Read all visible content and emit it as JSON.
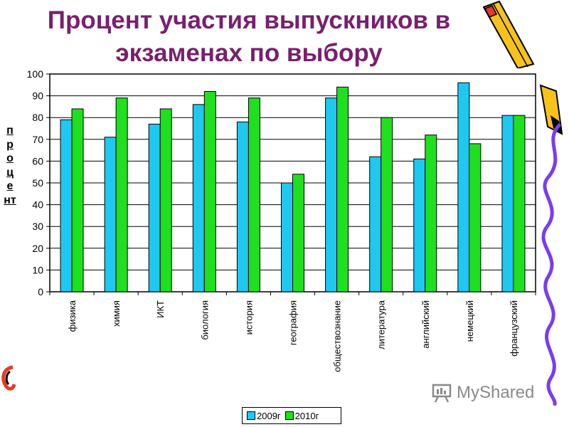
{
  "title": {
    "line1": "Процент участия выпускников в",
    "line2": "экзаменах по выбору"
  },
  "watermark": {
    "text": "MyShared",
    "icon": "presentation-board-icon"
  },
  "colors": {
    "series_2009": "#1ec8f0",
    "series_2010": "#1fe01f",
    "title": "#7a1f6e"
  },
  "chart_data": {
    "type": "bar",
    "ylabel": "процент",
    "ylim": [
      0,
      100
    ],
    "yticks": [
      0,
      10,
      20,
      30,
      40,
      50,
      60,
      70,
      80,
      90,
      100
    ],
    "grid": true,
    "legend_position": "bottom",
    "categories": [
      "физика",
      "химия",
      "ИКТ",
      "биология",
      "история",
      "география",
      "обществознание",
      "литература",
      "английский",
      "немецкий",
      "французский"
    ],
    "series": [
      {
        "name": "2009г",
        "color": "#1ec8f0",
        "values": [
          79,
          71,
          77,
          86,
          78,
          50,
          89,
          62,
          61,
          96,
          81
        ]
      },
      {
        "name": "2010г",
        "color": "#1fe01f",
        "values": [
          84,
          89,
          84,
          92,
          89,
          54,
          94,
          80,
          72,
          68,
          81
        ]
      }
    ]
  }
}
